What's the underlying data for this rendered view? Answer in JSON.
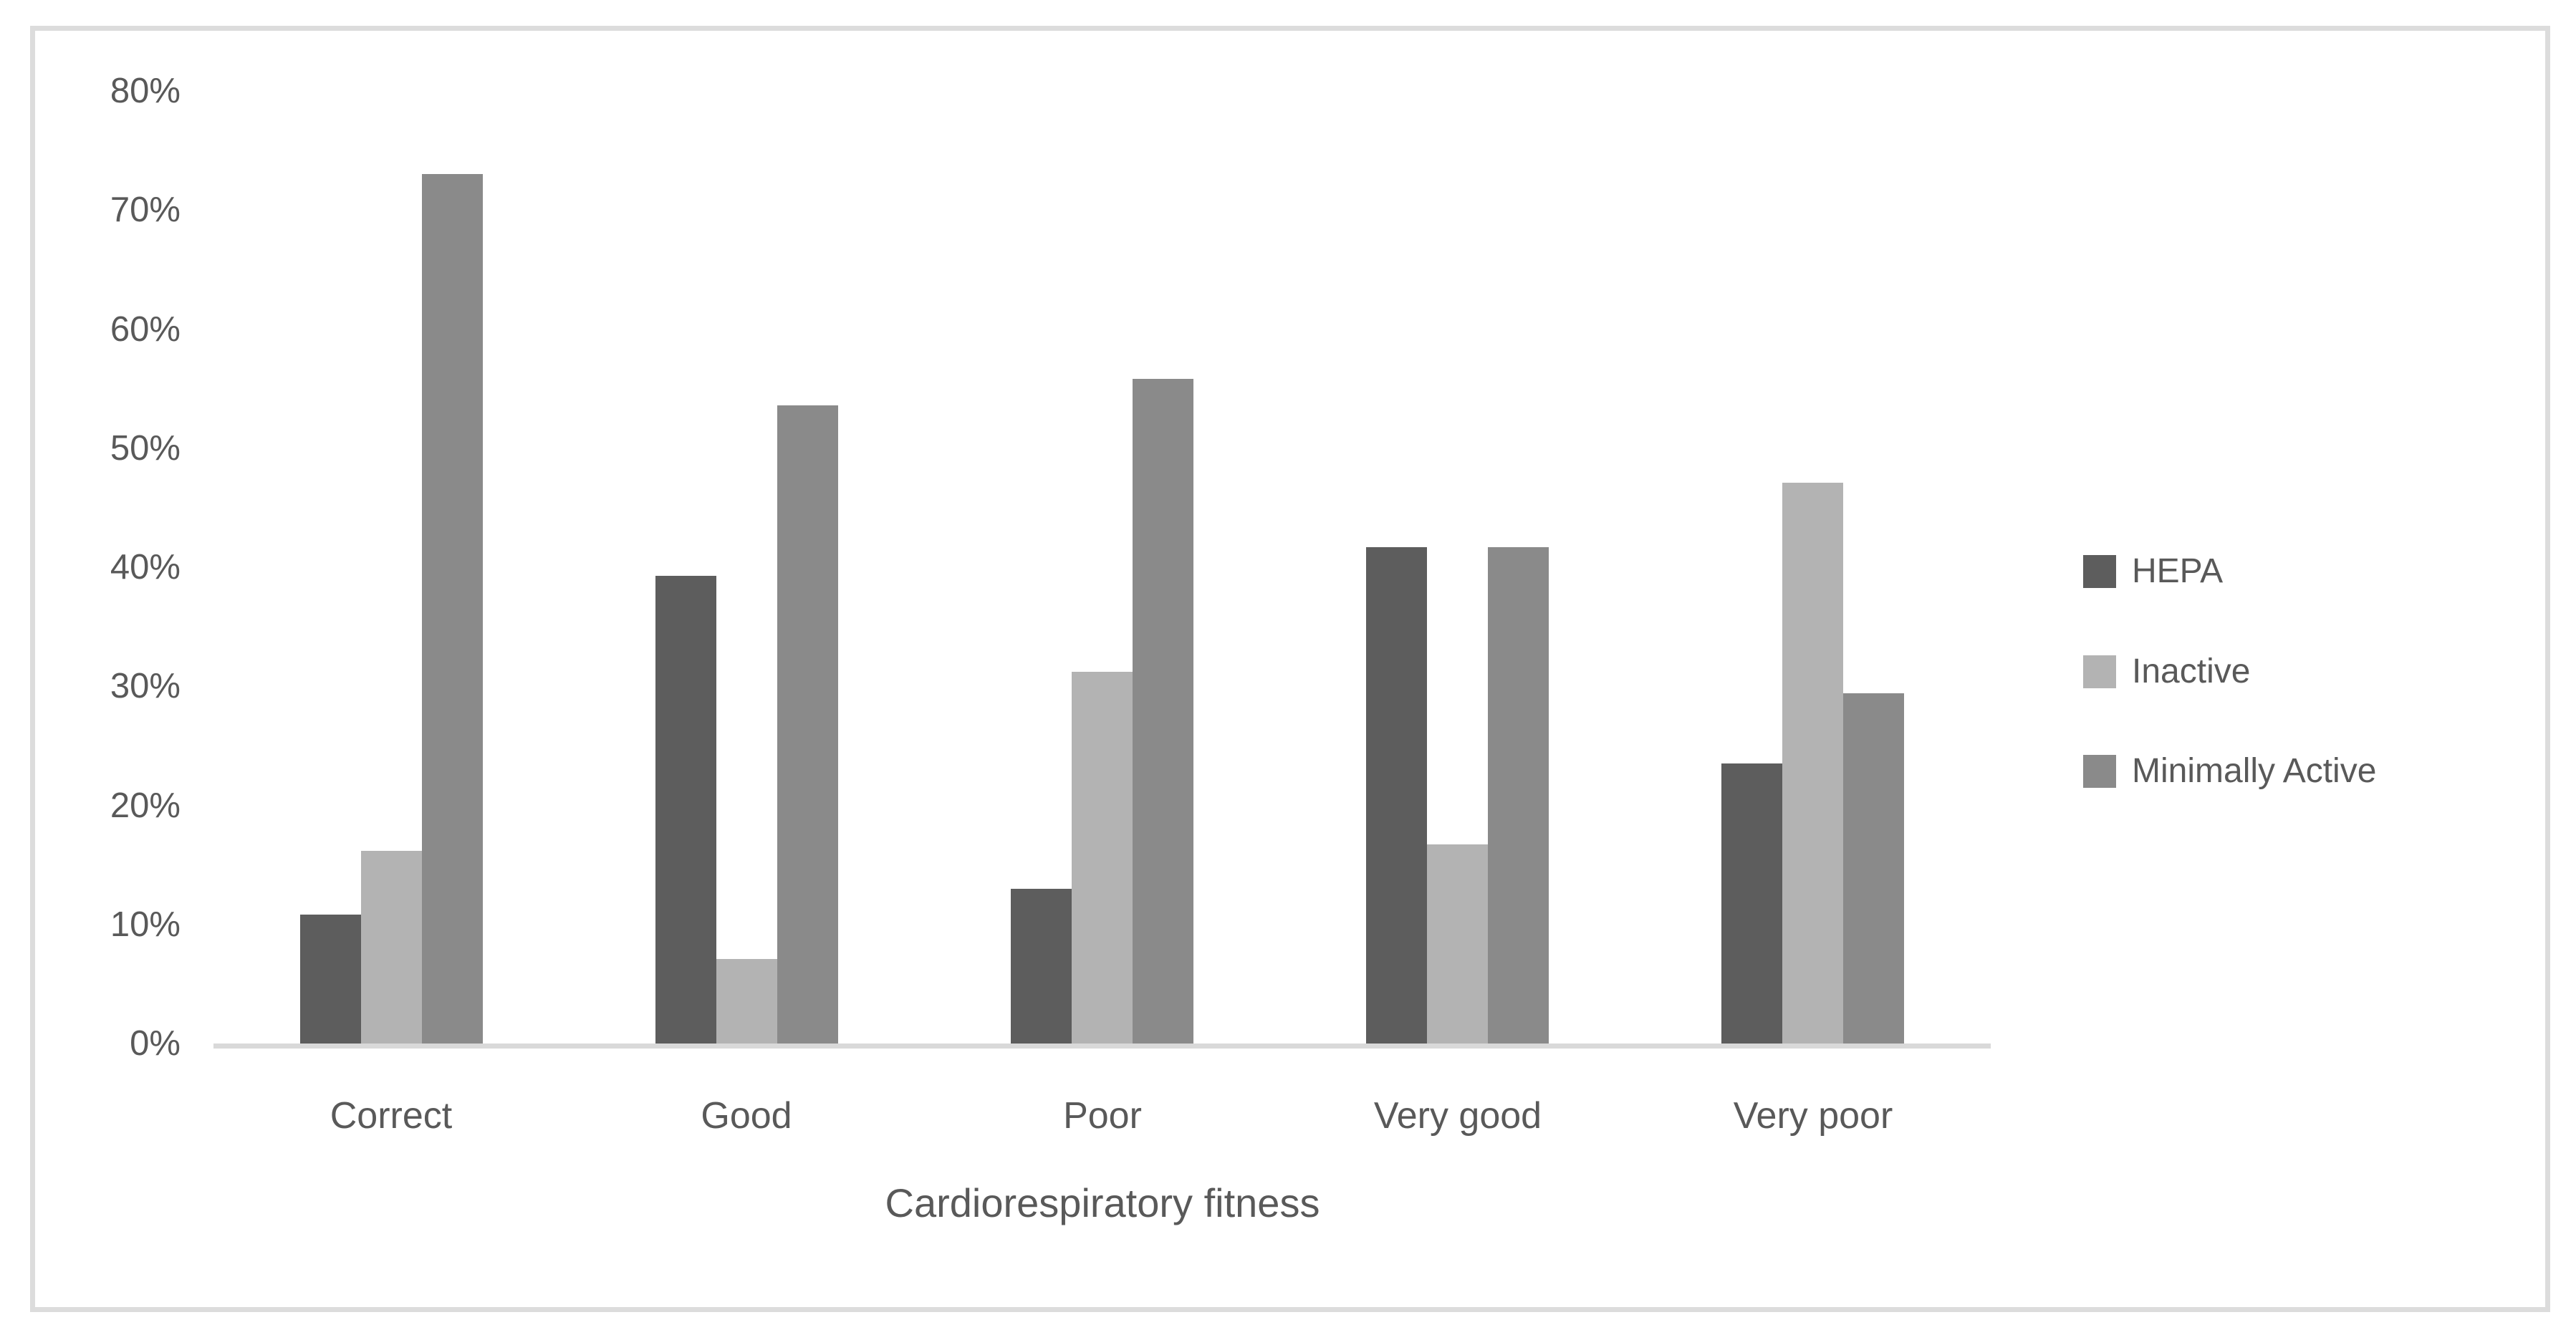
{
  "chart_data": {
    "type": "bar",
    "title": "",
    "categories": [
      "Correct",
      "Good",
      "Poor",
      "Very good",
      "Very poor"
    ],
    "series": [
      {
        "name": "HEPA",
        "color": "#5d5d5d",
        "values": [
          10.8,
          39.3,
          13.0,
          41.7,
          23.5
        ]
      },
      {
        "name": "Inactive",
        "color": "#b3b3b3",
        "values": [
          16.2,
          7.1,
          31.2,
          16.7,
          47.1
        ]
      },
      {
        "name": "Minimally Active",
        "color": "#8a8a8a",
        "values": [
          73.0,
          53.6,
          55.8,
          41.7,
          29.4
        ]
      }
    ],
    "xlabel": "Cardiorespiratory fitness",
    "ylabel": "",
    "ylim": [
      0,
      80
    ],
    "ytick_step": 10,
    "ytick_labels": [
      "0%",
      "10%",
      "20%",
      "30%",
      "40%",
      "50%",
      "60%",
      "70%",
      "80%"
    ],
    "grid": false,
    "legend_position": "right",
    "axis_line_color": "#d9d9d9",
    "frame_border_color": "#dcdcdc",
    "text_color": "#595959"
  }
}
